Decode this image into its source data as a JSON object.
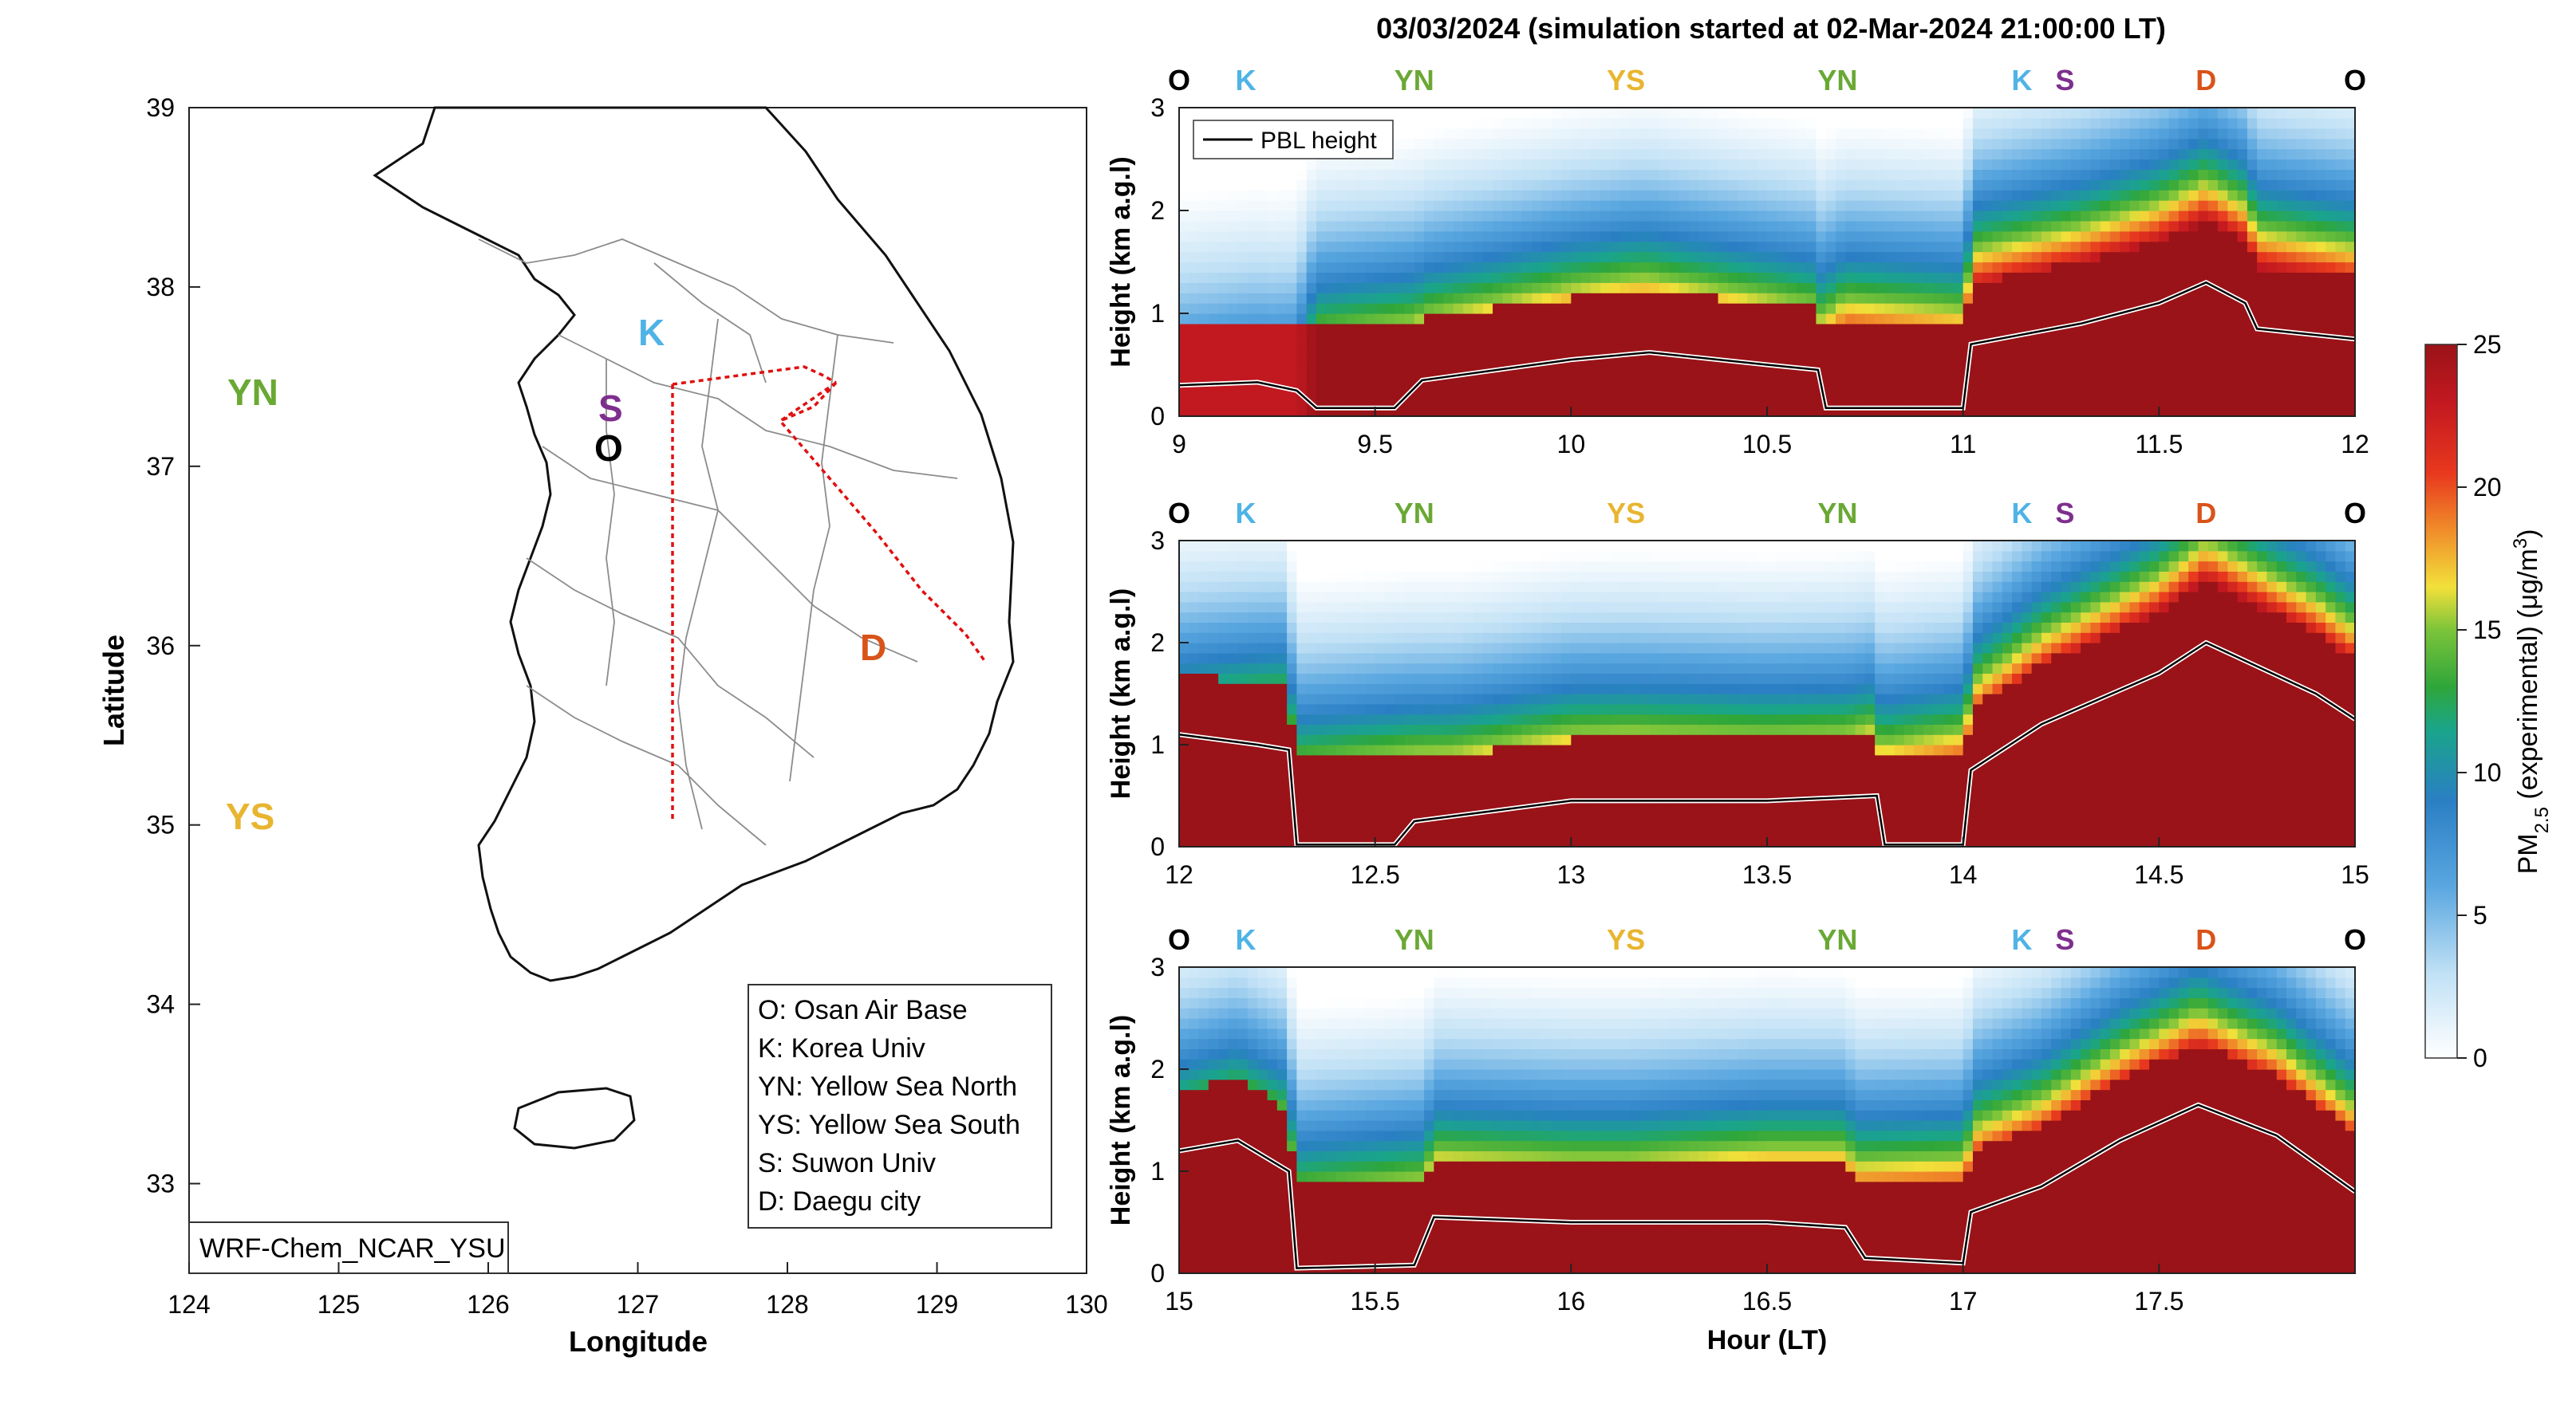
{
  "title": "03/03/2024 (simulation started at 02-Mar-2024 21:00:00 LT)",
  "colors": {
    "O": "#000000",
    "K": "#4fb3e6",
    "YN": "#6aa834",
    "YS": "#e8b530",
    "S": "#7e2f8e",
    "D": "#d95319",
    "track": "#e01010"
  },
  "map": {
    "xlabel": "Longitude",
    "ylabel": "Latitude",
    "xlim": [
      124,
      130
    ],
    "ylim": [
      32.5,
      39
    ],
    "xticks": [
      "124",
      "125",
      "126",
      "127",
      "128",
      "129",
      "130"
    ],
    "yticks": [
      "33",
      "34",
      "35",
      "36",
      "37",
      "38",
      "39"
    ],
    "model_label": "WRF-Chem_NCAR_YSU",
    "sites": [
      {
        "code": "YN",
        "lon": 124.75,
        "lat": 37.45,
        "color": "#6aa834"
      },
      {
        "code": "YS",
        "lon": 124.75,
        "lat": 35.05,
        "color": "#e8b530"
      },
      {
        "code": "K",
        "lon": 127.2,
        "lat": 37.67,
        "color": "#4fb3e6"
      },
      {
        "code": "S",
        "lon": 127.0,
        "lat": 37.3,
        "color": "#7e2f8e"
      },
      {
        "code": "O",
        "lon": 127.05,
        "lat": 37.08,
        "color": "#000000"
      },
      {
        "code": "D",
        "lon": 128.55,
        "lat": 35.9,
        "color": "#d95319"
      }
    ],
    "legend": [
      "O: Osan Air Base",
      "K: Korea Univ",
      "YN: Yellow Sea North",
      "YS: Yellow Sea South",
      "S: Suwon Univ",
      "D: Daegu city"
    ]
  },
  "chart_data": [
    {
      "type": "heatmap",
      "xlim": [
        9,
        12
      ],
      "ylim": [
        0,
        3
      ],
      "xticks": [
        "9",
        "9.5",
        "10",
        "10.5",
        "11",
        "11.5",
        "12"
      ],
      "yticks": [
        "0",
        "1",
        "2",
        "3"
      ],
      "ylabel": "Height (km a.g.l)",
      "xlabel": "",
      "legend": "PBL height",
      "markers": [
        {
          "code": "O",
          "x": 9
        },
        {
          "code": "K",
          "x": 9.17
        },
        {
          "code": "YN",
          "x": 9.6
        },
        {
          "code": "YS",
          "x": 10.14
        },
        {
          "code": "YN",
          "x": 10.68
        },
        {
          "code": "K",
          "x": 11.15
        },
        {
          "code": "S",
          "x": 11.26
        },
        {
          "code": "D",
          "x": 11.62
        },
        {
          "code": "O",
          "x": 12
        }
      ],
      "pbl": [
        [
          9,
          0.3
        ],
        [
          9.2,
          0.33
        ],
        [
          9.3,
          0.25
        ],
        [
          9.35,
          0.08
        ],
        [
          9.55,
          0.08
        ],
        [
          9.62,
          0.35
        ],
        [
          10,
          0.55
        ],
        [
          10.2,
          0.62
        ],
        [
          10.5,
          0.5
        ],
        [
          10.63,
          0.45
        ],
        [
          10.65,
          0.08
        ],
        [
          11,
          0.08
        ],
        [
          11.02,
          0.7
        ],
        [
          11.3,
          0.9
        ],
        [
          11.5,
          1.1
        ],
        [
          11.62,
          1.3
        ],
        [
          11.72,
          1.1
        ],
        [
          11.75,
          0.85
        ],
        [
          12,
          0.75
        ]
      ],
      "conc_profile": [
        [
          9,
          23,
          6
        ],
        [
          9.3,
          23,
          7
        ],
        [
          9.35,
          25,
          14
        ],
        [
          9.6,
          25,
          16
        ],
        [
          10.15,
          25,
          18
        ],
        [
          10.63,
          25,
          16
        ],
        [
          10.7,
          25,
          20
        ],
        [
          11,
          25,
          18
        ],
        [
          11.02,
          25,
          22
        ],
        [
          11.62,
          25,
          24
        ],
        [
          12,
          25,
          22
        ]
      ]
    },
    {
      "type": "heatmap",
      "xlim": [
        12,
        15
      ],
      "ylim": [
        0,
        3
      ],
      "xticks": [
        "12",
        "12.5",
        "13",
        "13.5",
        "14",
        "14.5",
        "15"
      ],
      "yticks": [
        "0",
        "1",
        "2",
        "3"
      ],
      "ylabel": "Height (km a.g.l)",
      "xlabel": "",
      "markers": [
        {
          "code": "O",
          "x": 12
        },
        {
          "code": "K",
          "x": 12.17
        },
        {
          "code": "YN",
          "x": 12.6
        },
        {
          "code": "YS",
          "x": 13.14
        },
        {
          "code": "YN",
          "x": 13.68
        },
        {
          "code": "K",
          "x": 14.15
        },
        {
          "code": "S",
          "x": 14.26
        },
        {
          "code": "D",
          "x": 14.62
        },
        {
          "code": "O",
          "x": 15
        }
      ],
      "pbl": [
        [
          12,
          1.1
        ],
        [
          12.2,
          1.0
        ],
        [
          12.28,
          0.95
        ],
        [
          12.3,
          0.02
        ],
        [
          12.55,
          0.02
        ],
        [
          12.6,
          0.25
        ],
        [
          13,
          0.45
        ],
        [
          13.5,
          0.45
        ],
        [
          13.78,
          0.5
        ],
        [
          13.8,
          0.02
        ],
        [
          14,
          0.02
        ],
        [
          14.02,
          0.75
        ],
        [
          14.2,
          1.2
        ],
        [
          14.5,
          1.7
        ],
        [
          14.62,
          2.0
        ],
        [
          14.9,
          1.5
        ],
        [
          15,
          1.25
        ]
      ],
      "conc_profile": [
        [
          12,
          25,
          10
        ],
        [
          12.3,
          25,
          14
        ],
        [
          12.6,
          25,
          16
        ],
        [
          13.15,
          25,
          17
        ],
        [
          13.7,
          25,
          16
        ],
        [
          14,
          25,
          20
        ],
        [
          14.62,
          25,
          24
        ],
        [
          15,
          25,
          22
        ]
      ]
    },
    {
      "type": "heatmap",
      "xlim": [
        15,
        18
      ],
      "ylim": [
        0,
        3
      ],
      "xticks": [
        "15",
        "15.5",
        "16",
        "16.5",
        "17",
        "17.5"
      ],
      "yticks": [
        "0",
        "1",
        "2",
        "3"
      ],
      "ylabel": "Height (km a.g.l)",
      "xlabel": "Hour (LT)",
      "markers": [
        {
          "code": "O",
          "x": 15
        },
        {
          "code": "K",
          "x": 15.17
        },
        {
          "code": "YN",
          "x": 15.6
        },
        {
          "code": "YS",
          "x": 16.14
        },
        {
          "code": "YN",
          "x": 16.68
        },
        {
          "code": "K",
          "x": 17.15
        },
        {
          "code": "S",
          "x": 17.26
        },
        {
          "code": "D",
          "x": 17.62
        },
        {
          "code": "O",
          "x": 18
        }
      ],
      "pbl": [
        [
          15,
          1.2
        ],
        [
          15.15,
          1.3
        ],
        [
          15.28,
          1.0
        ],
        [
          15.3,
          0.05
        ],
        [
          15.6,
          0.08
        ],
        [
          15.65,
          0.55
        ],
        [
          16,
          0.5
        ],
        [
          16.5,
          0.5
        ],
        [
          16.7,
          0.45
        ],
        [
          16.75,
          0.15
        ],
        [
          17,
          0.1
        ],
        [
          17.02,
          0.6
        ],
        [
          17.2,
          0.85
        ],
        [
          17.4,
          1.3
        ],
        [
          17.6,
          1.65
        ],
        [
          17.8,
          1.35
        ],
        [
          18,
          0.8
        ]
      ],
      "conc_profile": [
        [
          15,
          25,
          12
        ],
        [
          15.3,
          25,
          14
        ],
        [
          15.6,
          25,
          16
        ],
        [
          16.15,
          25,
          16
        ],
        [
          16.7,
          25,
          19
        ],
        [
          17,
          25,
          20
        ],
        [
          17.6,
          25,
          22
        ],
        [
          18,
          25,
          20
        ]
      ]
    }
  ],
  "colorbar": {
    "label_main": "PM",
    "label_sub": "2.5",
    "label_rest": " (experimental) (μg/m",
    "label_sup": "3",
    "label_end": ")",
    "ticks": [
      "0",
      "5",
      "10",
      "15",
      "20",
      "25"
    ],
    "min": 0,
    "max": 25
  }
}
